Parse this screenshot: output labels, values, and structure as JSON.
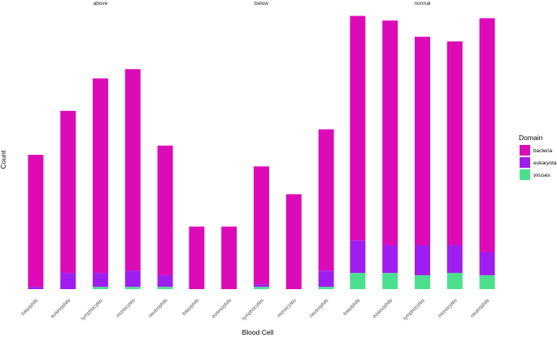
{
  "chart_data": {
    "type": "bar",
    "stacked": true,
    "facets": [
      "above",
      "below",
      "normal"
    ],
    "categories": [
      "basophils",
      "eosinophils",
      "lymphocytes",
      "monocytes",
      "neutrophils"
    ],
    "series_order": [
      "viruses",
      "eukaryota",
      "bacteria"
    ],
    "series": [
      {
        "name": "viruses",
        "color": "#4ce08e",
        "values": {
          "above": [
            0,
            0,
            1,
            1,
            1
          ],
          "below": [
            0,
            0,
            1,
            0,
            1
          ],
          "normal": [
            7,
            7,
            6,
            7,
            6
          ]
        }
      },
      {
        "name": "eukaryota",
        "color": "#a01df0",
        "values": {
          "above": [
            1,
            7,
            6,
            7,
            5
          ],
          "below": [
            0,
            0,
            1,
            0,
            7
          ],
          "normal": [
            14,
            12,
            13,
            12,
            10
          ]
        }
      },
      {
        "name": "bacteria",
        "color": "#dd0bb7",
        "values": {
          "above": [
            57,
            70,
            84,
            87,
            56
          ],
          "below": [
            27,
            27,
            51,
            41,
            61
          ],
          "normal": [
            97,
            97,
            90,
            88,
            101
          ]
        }
      }
    ],
    "xlabel": "Blood Cell",
    "ylabel": "Count",
    "ylim": [
      0,
      121
    ],
    "grid": false,
    "legend": {
      "title": "Domain",
      "position": "right",
      "items": [
        "bacteria",
        "eukaryota",
        "viruses"
      ]
    }
  }
}
